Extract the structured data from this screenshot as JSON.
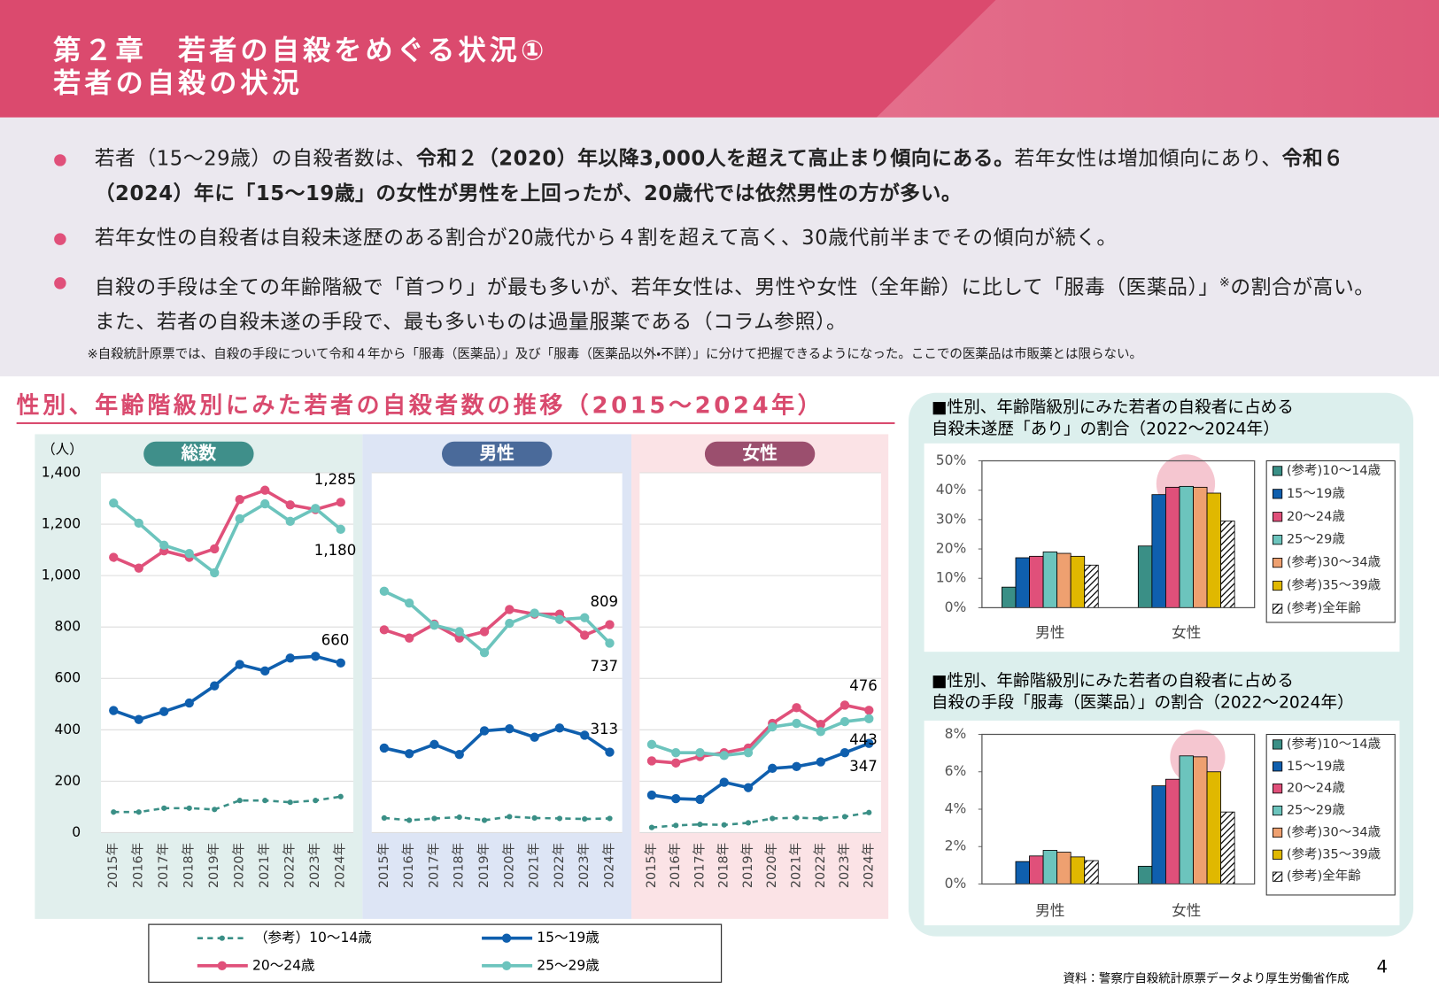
{
  "header": {
    "title": "第２章　若者の自殺をめぐる状況①",
    "subtitle": "若者の自殺の状況"
  },
  "bullets": [
    [
      {
        "text": "若者（15～29歳）の自殺者数は、"
      },
      {
        "text": "令和２（2020）年以降3,000人を超えて高止まり傾向にある。",
        "bold": true
      },
      {
        "text": "若年女性は増加傾向にあり、"
      },
      {
        "text": "令和６（2024）年に「15～19歳」の女性が男性を上回ったが、20歳代では依然男性の方が多い。",
        "bold": true
      }
    ],
    [
      {
        "text": "若年女性の自殺者は自殺未遂歴のある割合が20歳代から４割を超えて高く、30歳代前半までその傾向が続く。"
      }
    ],
    [
      {
        "text": "自殺の手段は全ての年齢階級で「首つり」が最も多いが、若年女性は、男性や女性（全年齢）に比して「服毒（医薬品）」"
      },
      {
        "text": "※",
        "sup": true
      },
      {
        "text": "の割合が高い。また、若者の自殺未遂の手段で、最も多いものは過量服薬である（コラム参照）。"
      }
    ]
  ],
  "note": "※自殺統計原票では、自殺の手段について令和４年から「服毒（医薬品）」及び「服毒（医薬品以外・不詳）」に分けて把握できるようになった。ここでの医薬品は市販薬とは限らない。",
  "source": "資料：警察庁自殺統計原票データより厚生労働省作成",
  "page_number": "4",
  "chart_data": [
    {
      "type": "line",
      "title": "性別、年齢階級別にみた若者の自殺者数の推移（2015～2024年）",
      "y_label": "（人）",
      "categories": [
        "2015年",
        "2016年",
        "2017年",
        "2018年",
        "2019年",
        "2020年",
        "2021年",
        "2022年",
        "2023年",
        "2024年"
      ],
      "ylim": [
        0,
        1400
      ],
      "yticks": [
        0,
        200,
        400,
        600,
        800,
        {
          "value": 1000,
          "label": "1,000"
        },
        {
          "value": 1200,
          "label": "1,200"
        },
        {
          "value": 1400,
          "label": "1,400"
        }
      ],
      "grid": true,
      "series": [
        {
          "name": "（参考）10～14歳",
          "color": "#3a8f86",
          "dashed": true
        },
        {
          "name": "15～19歳",
          "color": "#0f5fae"
        },
        {
          "name": "20～24歳",
          "color": "#e0507a"
        },
        {
          "name": "25～29歳",
          "color": "#6cc4bd"
        }
      ],
      "panels": [
        {
          "title": "総数",
          "color": "#3f8f8a",
          "series": [
            {
              "values": [
                80,
                80,
                95,
                95,
                90,
                125,
                125,
                118,
                125,
                140
              ]
            },
            {
              "values": [
                475,
                440,
                471,
                504,
                571,
                654,
                629,
                679,
                686,
                660
              ],
              "value_labels": [
                null,
                null,
                null,
                null,
                null,
                null,
                null,
                null,
                null,
                "660"
              ]
            },
            {
              "values": [
                1071,
                1029,
                1096,
                1071,
                1104,
                1296,
                1332,
                1275,
                1257,
                1285
              ],
              "value_labels": [
                null,
                null,
                null,
                null,
                null,
                null,
                null,
                null,
                null,
                "1,285"
              ]
            },
            {
              "values": [
                1282,
                1204,
                1118,
                1086,
                1011,
                1221,
                1279,
                1211,
                1261,
                1180
              ],
              "value_labels": [
                null,
                null,
                null,
                null,
                null,
                null,
                null,
                null,
                null,
                "1,180"
              ]
            }
          ]
        },
        {
          "title": "男性",
          "color": "#4a6a9a",
          "series": [
            {
              "values": [
                57,
                48,
                55,
                60,
                48,
                62,
                57,
                55,
                53,
                55
              ]
            },
            {
              "values": [
                329,
                307,
                343,
                304,
                396,
                404,
                371,
                407,
                379,
                313
              ],
              "value_labels": [
                null,
                null,
                null,
                null,
                null,
                null,
                null,
                null,
                null,
                "313"
              ]
            },
            {
              "values": [
                789,
                757,
                811,
                757,
                782,
                868,
                850,
                850,
                768,
                809
              ],
              "value_labels": [
                null,
                null,
                null,
                null,
                null,
                null,
                null,
                null,
                null,
                "809"
              ]
            },
            {
              "values": [
                939,
                893,
                807,
                782,
                700,
                814,
                854,
                829,
                836,
                737
              ],
              "value_labels": [
                null,
                null,
                null,
                null,
                null,
                null,
                null,
                null,
                null,
                "737"
              ]
            }
          ]
        },
        {
          "title": "女性",
          "color": "#9b4f6e",
          "series": [
            {
              "values": [
                20,
                28,
                32,
                30,
                38,
                55,
                58,
                55,
                62,
                78
              ]
            },
            {
              "values": [
                146,
                132,
                129,
                196,
                175,
                250,
                257,
                275,
                311,
                347
              ],
              "value_labels": [
                null,
                null,
                null,
                null,
                null,
                null,
                null,
                null,
                null,
                "347"
              ]
            },
            {
              "values": [
                279,
                271,
                296,
                311,
                329,
                425,
                486,
                421,
                496,
                476
              ],
              "value_labels": [
                null,
                null,
                null,
                null,
                null,
                null,
                null,
                null,
                null,
                "476"
              ]
            },
            {
              "values": [
                343,
                311,
                311,
                300,
                311,
                411,
                425,
                393,
                432,
                443
              ],
              "value_labels": [
                null,
                null,
                null,
                null,
                null,
                null,
                null,
                null,
                null,
                "443"
              ]
            }
          ]
        }
      ]
    },
    {
      "type": "bar",
      "title": [
        "■性別、年齢階級別にみた若者の自殺者に占める",
        "自殺未遂歴「あり」の割合（2022～2024年）"
      ],
      "categories": [
        "男性",
        "女性"
      ],
      "ylim": [
        0,
        50
      ],
      "yticks": [
        {
          "value": 0,
          "label": "0%"
        },
        {
          "value": 10,
          "label": "10%"
        },
        {
          "value": 20,
          "label": "20%"
        },
        {
          "value": 30,
          "label": "30%"
        },
        {
          "value": 40,
          "label": "40%"
        },
        {
          "value": 50,
          "label": "50%"
        }
      ],
      "series": [
        {
          "name": "(参考)10～14歳",
          "color": "#3a8f86",
          "values": [
            7,
            21
          ]
        },
        {
          "name": "15～19歳",
          "color": "#0f5fae",
          "values": [
            17,
            38.5
          ]
        },
        {
          "name": "20～24歳",
          "color": "#e0507a",
          "values": [
            17.5,
            41
          ]
        },
        {
          "name": "25～29歳",
          "color": "#6cc4bd",
          "values": [
            19,
            41.3
          ]
        },
        {
          "name": "(参考)30～34歳",
          "color": "#eea070",
          "values": [
            18.5,
            41
          ]
        },
        {
          "name": "(参考)35～39歳",
          "color": "#e0b800",
          "values": [
            17.5,
            39
          ]
        },
        {
          "name": "(参考)全年齢",
          "color": "#000000",
          "pattern": "hatch",
          "values": [
            14.5,
            29.5
          ]
        }
      ]
    },
    {
      "type": "bar",
      "title": [
        "■性別、年齢階級別にみた若者の自殺者に占める",
        "自殺の手段「服毒（医薬品）」の割合（2022～2024年）"
      ],
      "categories": [
        "男性",
        "女性"
      ],
      "ylim": [
        0,
        8
      ],
      "yticks": [
        {
          "value": 0,
          "label": "0%"
        },
        {
          "value": 2,
          "label": "2%"
        },
        {
          "value": 4,
          "label": "4%"
        },
        {
          "value": 6,
          "label": "6%"
        },
        {
          "value": 8,
          "label": "8%"
        }
      ],
      "series": [
        {
          "name": "(参考)10～14歳",
          "color": "#3a8f86",
          "values": [
            0,
            0.95
          ]
        },
        {
          "name": "15～19歳",
          "color": "#0f5fae",
          "values": [
            1.2,
            5.25
          ]
        },
        {
          "name": "20～24歳",
          "color": "#e0507a",
          "values": [
            1.5,
            5.6
          ]
        },
        {
          "name": "25～29歳",
          "color": "#6cc4bd",
          "values": [
            1.8,
            6.85
          ]
        },
        {
          "name": "(参考)30～34歳",
          "color": "#eea070",
          "values": [
            1.7,
            6.8
          ]
        },
        {
          "name": "(参考)35～39歳",
          "color": "#e0b800",
          "values": [
            1.45,
            6.0
          ]
        },
        {
          "name": "(参考)全年齢",
          "color": "#000000",
          "pattern": "hatch",
          "values": [
            1.25,
            3.85
          ]
        }
      ]
    }
  ]
}
